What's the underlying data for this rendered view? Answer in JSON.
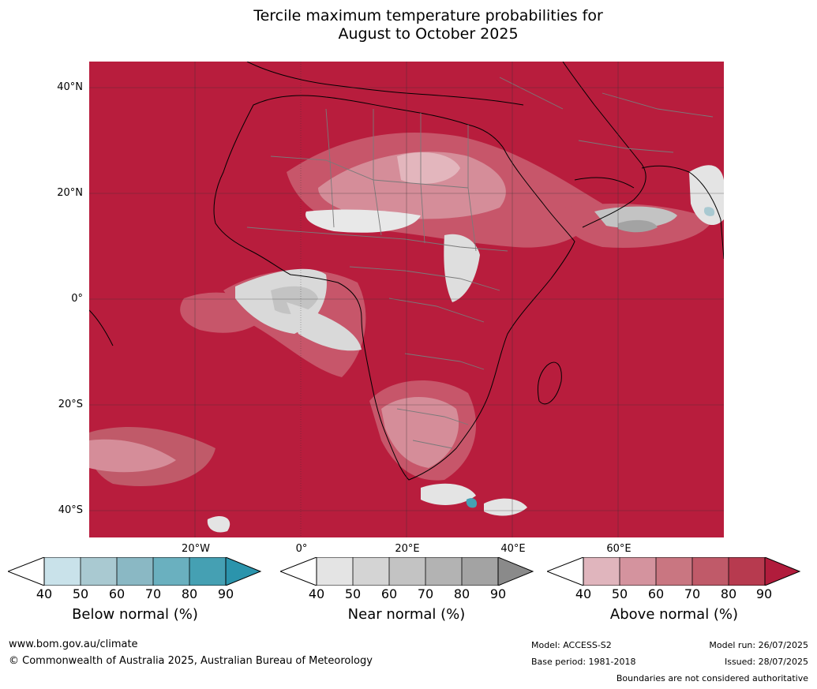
{
  "title": {
    "line1": "Tercile maximum temperature probabilities for",
    "line2": "August to October 2025"
  },
  "map": {
    "lat_labels": [
      "40°N",
      "20°N",
      "0°",
      "20°S",
      "40°S"
    ],
    "lon_labels": [
      "20°W",
      "0°",
      "20°E",
      "40°E",
      "60°E"
    ],
    "lat_range": [
      -45,
      45
    ],
    "lon_range": [
      -40,
      80
    ],
    "background_color": "#b81d3d"
  },
  "colorbars": [
    {
      "label": "Below normal (%)",
      "ticks": [
        "40",
        "50",
        "60",
        "70",
        "80",
        "90"
      ],
      "colors": [
        "#ffffff",
        "#c9e2ea",
        "#a9c9d1",
        "#8ab8c4",
        "#6ab0bf",
        "#45a0b3",
        "#2b94ac"
      ]
    },
    {
      "label": "Near normal (%)",
      "ticks": [
        "40",
        "50",
        "60",
        "70",
        "80",
        "90"
      ],
      "colors": [
        "#ffffff",
        "#e4e4e4",
        "#d4d4d4",
        "#c3c3c3",
        "#b3b3b3",
        "#a3a3a3",
        "#8a8a8a"
      ]
    },
    {
      "label": "Above normal (%)",
      "ticks": [
        "40",
        "50",
        "60",
        "70",
        "80",
        "90"
      ],
      "colors": [
        "#ffffff",
        "#e0b5bd",
        "#d4939e",
        "#c97681",
        "#c05a69",
        "#b73a4f",
        "#b11c3c"
      ]
    }
  ],
  "footer": {
    "website": "www.bom.gov.au/climate",
    "copyright": "© Commonwealth of Australia 2025, Australian Bureau of Meteorology",
    "model": "Model: ACCESS-S2",
    "base_period": "Base period: 1981-2018",
    "model_run": "Model run: 26/07/2025",
    "issued": "Issued: 28/07/2025",
    "disclaimer": "Boundaries are not considered authoritative"
  }
}
